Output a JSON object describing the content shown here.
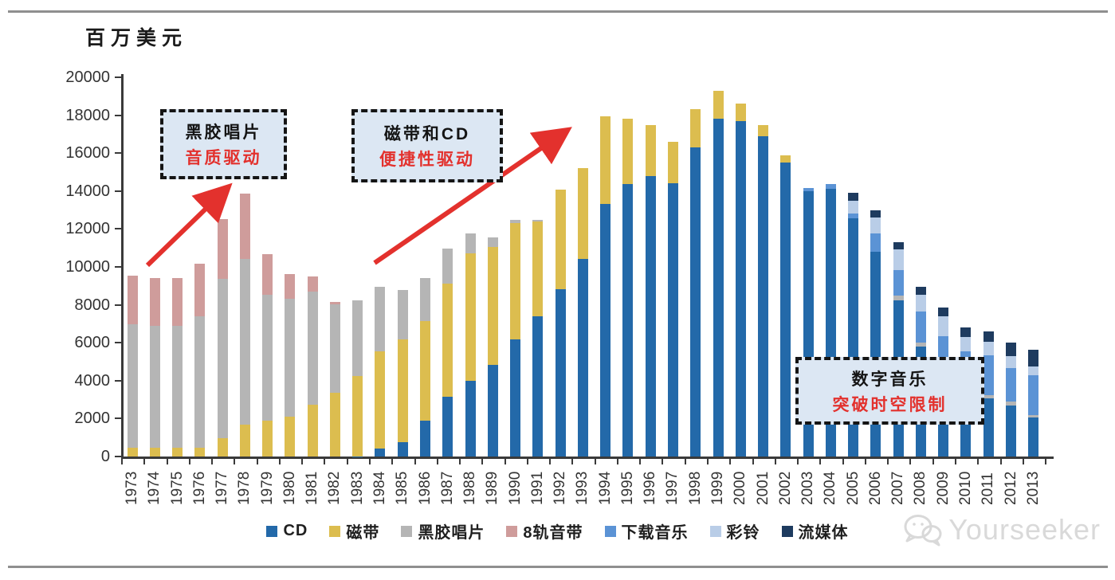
{
  "chart_data": {
    "type": "bar",
    "stacked": true,
    "unit_label": "百万美元",
    "title": "",
    "xlabel": "",
    "ylabel": "百万美元",
    "ylim": [
      0,
      20000
    ],
    "ytick_step": 2000,
    "yticks": [
      0,
      2000,
      4000,
      6000,
      8000,
      10000,
      12000,
      14000,
      16000,
      18000,
      20000
    ],
    "grid": false,
    "legend_position": "bottom",
    "categories": [
      "1973",
      "1974",
      "1975",
      "1976",
      "1977",
      "1978",
      "1979",
      "1980",
      "1981",
      "1982",
      "1983",
      "1984",
      "1985",
      "1986",
      "1987",
      "1988",
      "1989",
      "1990",
      "1991",
      "1992",
      "1993",
      "1994",
      "1995",
      "1996",
      "1997",
      "1998",
      "1999",
      "2000",
      "2001",
      "2002",
      "2003",
      "2004",
      "2005",
      "2006",
      "2007",
      "2008",
      "2009",
      "2010",
      "2011",
      "2012",
      "2013"
    ],
    "series": [
      {
        "name": "CD",
        "color": "#2369a9",
        "values": [
          0,
          0,
          0,
          0,
          0,
          0,
          0,
          0,
          0,
          0,
          20,
          400,
          760,
          1900,
          3140,
          4000,
          4820,
          6190,
          7400,
          8830,
          10440,
          13310,
          14360,
          14780,
          14400,
          16300,
          17800,
          17700,
          16900,
          15500,
          14000,
          14100,
          12550,
          10800,
          8250,
          5800,
          4450,
          3450,
          3050,
          2700,
          2050
        ]
      },
      {
        "name": "磁带",
        "color": "#dcbd4f",
        "values": [
          480,
          480,
          480,
          480,
          970,
          1670,
          1880,
          2110,
          2720,
          3350,
          4230,
          5160,
          5430,
          5230,
          5980,
          6720,
          6230,
          6110,
          5000,
          5250,
          4760,
          4640,
          3440,
          2720,
          2180,
          2000,
          1500,
          900,
          600,
          400,
          0,
          0,
          0,
          0,
          0,
          0,
          0,
          0,
          0,
          0,
          0
        ]
      },
      {
        "name": "黑胶唱片",
        "color": "#b5b5b5",
        "values": [
          6500,
          6400,
          6400,
          6900,
          8400,
          8750,
          6650,
          6200,
          5980,
          4690,
          3990,
          3390,
          2590,
          2280,
          1850,
          1050,
          490,
          200,
          100,
          0,
          0,
          0,
          0,
          0,
          0,
          0,
          0,
          0,
          0,
          0,
          0,
          0,
          0,
          0,
          250,
          200,
          150,
          150,
          200,
          200,
          150
        ]
      },
      {
        "name": "8轨音带",
        "color": "#cf9c9b",
        "values": [
          2550,
          2520,
          2520,
          2800,
          3150,
          3460,
          2130,
          1330,
          810,
          100,
          0,
          0,
          0,
          0,
          0,
          0,
          0,
          0,
          0,
          0,
          0,
          0,
          0,
          0,
          0,
          0,
          0,
          0,
          0,
          0,
          0,
          0,
          0,
          0,
          0,
          0,
          0,
          0,
          0,
          0,
          0
        ]
      },
      {
        "name": "下载音乐",
        "color": "#5b93d5",
        "values": [
          0,
          0,
          0,
          0,
          0,
          0,
          0,
          0,
          0,
          0,
          0,
          0,
          0,
          0,
          0,
          0,
          0,
          0,
          0,
          0,
          0,
          0,
          0,
          0,
          0,
          0,
          0,
          0,
          0,
          0,
          150,
          250,
          250,
          950,
          1350,
          1650,
          1750,
          1950,
          2100,
          1750,
          2100
        ]
      },
      {
        "name": "彩铃",
        "color": "#b9cde7",
        "values": [
          0,
          0,
          0,
          0,
          0,
          0,
          0,
          0,
          0,
          0,
          0,
          0,
          0,
          0,
          0,
          0,
          0,
          0,
          0,
          0,
          0,
          0,
          0,
          0,
          0,
          0,
          0,
          0,
          0,
          0,
          0,
          0,
          700,
          850,
          1060,
          880,
          1050,
          750,
          700,
          650,
          450
        ]
      },
      {
        "name": "流媒体",
        "color": "#1e3b5f",
        "values": [
          0,
          0,
          0,
          0,
          0,
          0,
          0,
          0,
          0,
          0,
          0,
          0,
          0,
          0,
          0,
          0,
          0,
          0,
          0,
          0,
          0,
          0,
          0,
          0,
          0,
          0,
          0,
          0,
          0,
          0,
          0,
          0,
          400,
          400,
          400,
          420,
          450,
          500,
          550,
          700,
          900
        ]
      }
    ]
  },
  "annotations": {
    "vinyl": {
      "line1": "黑胶唱片",
      "line2": "音质驱动"
    },
    "cassette": {
      "line1": "磁带和CD",
      "line2": "便捷性驱动"
    },
    "digital": {
      "line1": "数字音乐",
      "line2": "突破时空限制"
    }
  },
  "colors": {
    "annotation_bg": "#dce7f3",
    "annotation_border": "#151515",
    "highlight_red": "#e3312d",
    "watermark_gray": "#d9d9d9"
  },
  "watermark": {
    "text": "Yourseeker"
  }
}
